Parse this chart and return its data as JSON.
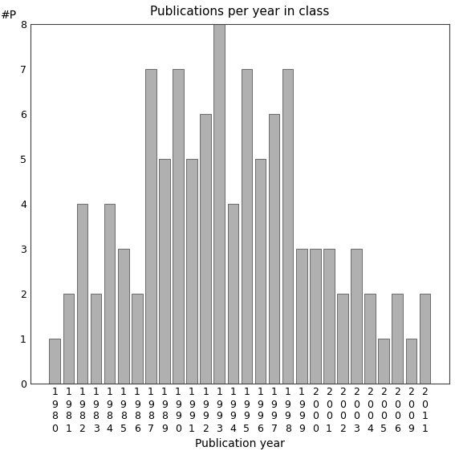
{
  "years": [
    "1980",
    "1981",
    "1982",
    "1983",
    "1984",
    "1985",
    "1986",
    "1987",
    "1989",
    "1990",
    "1991",
    "1992",
    "1993",
    "1994",
    "1995",
    "1996",
    "1997",
    "1998",
    "1999",
    "2000",
    "2001",
    "2002",
    "2003",
    "2004",
    "2005",
    "2006",
    "2009",
    "2011"
  ],
  "values": [
    1,
    2,
    4,
    2,
    4,
    3,
    2,
    7,
    5,
    7,
    5,
    6,
    8,
    4,
    7,
    5,
    6,
    7,
    3,
    3,
    3,
    2,
    3,
    2,
    1,
    2,
    1,
    2
  ],
  "bar_color": "#b0b0b0",
  "bar_edgecolor": "#404040",
  "title": "Publications per year in class",
  "xlabel": "Publication year",
  "ylabel": "#P",
  "ylim": [
    0,
    8
  ],
  "yticks": [
    0,
    1,
    2,
    3,
    4,
    5,
    6,
    7,
    8
  ],
  "title_fontsize": 11,
  "label_fontsize": 10,
  "tick_fontsize": 9,
  "background_color": "#ffffff"
}
